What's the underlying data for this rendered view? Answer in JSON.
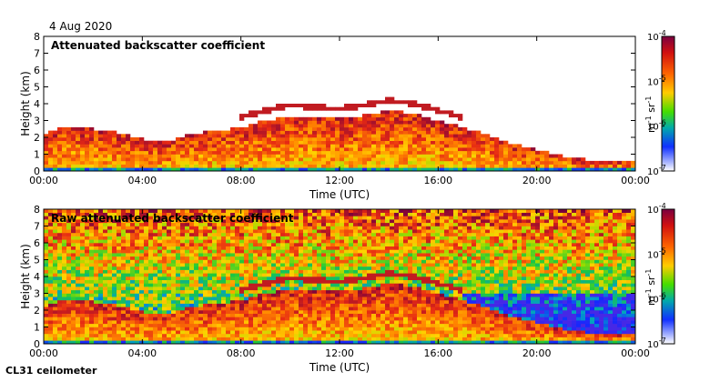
{
  "header": {
    "date": "4 Aug 2020"
  },
  "footer": {
    "instrument": "CL31 ceilometer"
  },
  "chart_data": [
    {
      "type": "heatmap",
      "title": "Attenuated backscatter coefficient",
      "xlabel": "Time (UTC)",
      "ylabel": "Height (km)",
      "x_ticks": [
        "00:00",
        "04:00",
        "08:00",
        "12:00",
        "16:00",
        "20:00",
        "00:00"
      ],
      "x_range_hours": [
        0,
        24
      ],
      "y_ticks": [
        "0",
        "1",
        "2",
        "3",
        "4",
        "5",
        "6",
        "7",
        "8"
      ],
      "ylim": [
        0,
        8
      ],
      "colorbar": {
        "labels": [
          "10",
          "10",
          "10",
          "10"
        ],
        "exponents": [
          "-4",
          "-5",
          "-6",
          "-7"
        ],
        "unit": "m",
        "unit_exp1": "-1",
        "unit2": "sr",
        "unit_exp2": "-1",
        "range": [
          1e-07,
          0.0001
        ],
        "scale": "log"
      },
      "mask_below_signal": true,
      "boundary_layer_top_km": [
        [
          0,
          2.2
        ],
        [
          1,
          2.7
        ],
        [
          2,
          2.5
        ],
        [
          3,
          2.3
        ],
        [
          4,
          1.9
        ],
        [
          5,
          1.7
        ],
        [
          6,
          2.2
        ],
        [
          7,
          2.4
        ],
        [
          8,
          2.6
        ],
        [
          9,
          3.0
        ],
        [
          10,
          3.3
        ],
        [
          11,
          3.2
        ],
        [
          12,
          3.1
        ],
        [
          13,
          3.3
        ],
        [
          14,
          3.6
        ],
        [
          15,
          3.4
        ],
        [
          16,
          3.0
        ],
        [
          17,
          2.6
        ],
        [
          18,
          2.2
        ],
        [
          19,
          1.6
        ],
        [
          20,
          1.3
        ],
        [
          21,
          0.9
        ],
        [
          22,
          0.7
        ],
        [
          23,
          0.6
        ],
        [
          24,
          0.6
        ]
      ]
    },
    {
      "type": "heatmap",
      "title": "Raw attenuated backscatter coefficient",
      "xlabel": "Time (UTC)",
      "ylabel": "Height (km)",
      "x_ticks": [
        "00:00",
        "04:00",
        "08:00",
        "12:00",
        "16:00",
        "20:00",
        "00:00"
      ],
      "x_range_hours": [
        0,
        24
      ],
      "y_ticks": [
        "0",
        "1",
        "2",
        "3",
        "4",
        "5",
        "6",
        "7",
        "8"
      ],
      "ylim": [
        0,
        8
      ],
      "colorbar": {
        "labels": [
          "10",
          "10",
          "10",
          "10"
        ],
        "exponents": [
          "-4",
          "-5",
          "-6",
          "-7"
        ],
        "unit": "m",
        "unit_exp1": "-1",
        "unit2": "sr",
        "unit_exp2": "-1",
        "range": [
          1e-07,
          0.0001
        ],
        "scale": "log"
      },
      "mask_below_signal": false,
      "boundary_layer_top_km": [
        [
          0,
          2.2
        ],
        [
          1,
          2.7
        ],
        [
          2,
          2.5
        ],
        [
          3,
          2.3
        ],
        [
          4,
          1.9
        ],
        [
          5,
          1.7
        ],
        [
          6,
          2.2
        ],
        [
          7,
          2.4
        ],
        [
          8,
          2.6
        ],
        [
          9,
          3.0
        ],
        [
          10,
          3.3
        ],
        [
          11,
          3.2
        ],
        [
          12,
          3.1
        ],
        [
          13,
          3.3
        ],
        [
          14,
          3.6
        ],
        [
          15,
          3.4
        ],
        [
          16,
          3.0
        ],
        [
          17,
          2.6
        ],
        [
          18,
          2.2
        ],
        [
          19,
          1.6
        ],
        [
          20,
          1.3
        ],
        [
          21,
          0.9
        ],
        [
          22,
          0.7
        ],
        [
          23,
          0.6
        ],
        [
          24,
          0.6
        ]
      ]
    }
  ]
}
